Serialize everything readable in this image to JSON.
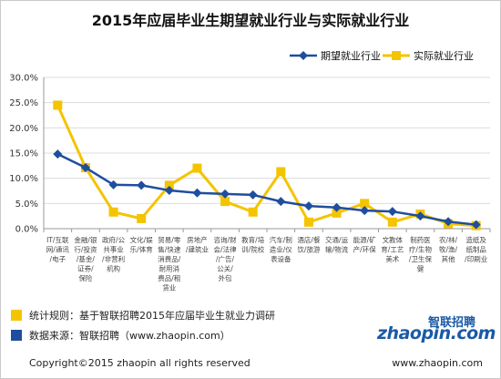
{
  "title": "2015年应届毕业生期望就业行业与实际就业行业",
  "colors": {
    "expected": "#1f4e9e",
    "actual": "#f4c400",
    "grid": "#dcdcdc",
    "axis": "#9a9a9a"
  },
  "chart_data": {
    "type": "line",
    "title": "2015年应届毕业生期望就业行业与实际就业行业",
    "xlabel": "",
    "ylabel": "",
    "ylim": [
      0,
      30
    ],
    "yticks": [
      0,
      5,
      10,
      15,
      20,
      25,
      30
    ],
    "ytick_labels": [
      "0.0%",
      "5.0%",
      "10.0%",
      "15.0%",
      "20.0%",
      "25.0%",
      "30.0%"
    ],
    "grid": true,
    "legend": "top-right",
    "categories": [
      "IT/互联网/通讯/电子",
      "金融/银行/投资/基金/证券/保险",
      "政府/公共事业/非营利机构",
      "文化/娱乐/体育",
      "贸易/零售/快速消费品/耐用消费品/租赁业",
      "房地产/建筑业",
      "咨询/财会/法律/广告/公关/外包",
      "教育/培训/院校",
      "汽车/制造业/仪表设备",
      "酒店/餐饮/旅游",
      "交通/运输/物流",
      "能源/矿产/环保",
      "文教体育/工艺美术",
      "制药医疗/生物/卫生保健",
      "农/林/牧/渔/其他",
      "造纸及纸制品/印刷业"
    ],
    "category_lines": [
      [
        "IT/互联",
        "网/通讯",
        "/电子"
      ],
      [
        "金融/银",
        "行/投资",
        "/基金/",
        "证券/",
        "保险"
      ],
      [
        "政府/公",
        "共事业",
        "/非营利",
        "机构"
      ],
      [
        "文化/娱",
        "乐/体育"
      ],
      [
        "贸易/零",
        "售/快速",
        "消费品/",
        "耐用消",
        "费品/租",
        "赁业"
      ],
      [
        "房地产",
        "/建筑业"
      ],
      [
        "咨询/财",
        "会/法律",
        "/广告/",
        "公关/",
        "外包"
      ],
      [
        "教育/培",
        "训/院校"
      ],
      [
        "汽车/制",
        "造业/仪",
        "表设备"
      ],
      [
        "酒店/餐",
        "饮/旅游"
      ],
      [
        "交通/运",
        "输/物流"
      ],
      [
        "能源/矿",
        "产/环保"
      ],
      [
        "文教体",
        "育/工艺",
        "美术"
      ],
      [
        "制药医",
        "疗/生物",
        "/卫生保",
        "健"
      ],
      [
        "农/林/",
        "牧/渔/",
        "其他"
      ],
      [
        "造纸及",
        "纸制品",
        "/印刷业"
      ]
    ],
    "series": [
      {
        "name": "期望就业行业",
        "values": [
          14.8,
          12.1,
          8.7,
          8.6,
          7.6,
          7.1,
          6.9,
          6.7,
          5.4,
          4.5,
          4.2,
          3.6,
          3.4,
          2.5,
          1.4,
          0.8
        ]
      },
      {
        "name": "实际就业行业",
        "values": [
          24.5,
          12.1,
          3.3,
          2.0,
          8.6,
          12.0,
          5.4,
          3.3,
          11.3,
          1.3,
          3.1,
          5.0,
          1.3,
          2.9,
          1.0,
          0.6
        ]
      }
    ]
  },
  "notes": [
    {
      "text": "统计规则：基于智联招聘2015年应届毕业生就业力调研",
      "color": "#f4c400"
    },
    {
      "text": "数据来源：智联招聘（www.zhaopin.com）",
      "color": "#1f4e9e"
    }
  ],
  "logo": {
    "top": "智联招聘",
    "main": "zhaopin.com"
  },
  "footer": {
    "left": "Copyright©2015 zhaopin all rights reserved",
    "right": "www.zhaopin.com"
  }
}
